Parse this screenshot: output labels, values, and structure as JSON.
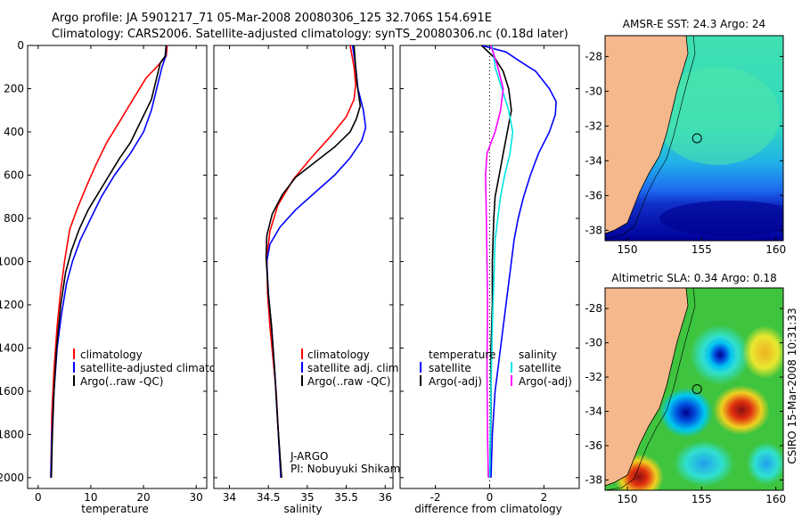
{
  "header": {
    "line1": "Argo profile: JA 5901217_71 05-Mar-2008 20080306_125 32.706S 154.691E",
    "line2": "Climatology: CARS2006. Satellite-adjusted climatology: synTS_20080306.nc (0.18d later)"
  },
  "colors": {
    "climatology": "#ff0000",
    "satellite": "#0000ff",
    "argo": "#000000",
    "salinity_satellite": "#00e5e5",
    "salinity_argo": "#ff00ff",
    "land": "#f5b88c"
  },
  "chart_data": [
    {
      "type": "line",
      "name": "temperature-profile",
      "xlabel": "temperature",
      "xlim": [
        -2,
        32
      ],
      "ylim": [
        2050,
        0
      ],
      "xticks": [
        0,
        10,
        20,
        30
      ],
      "yticks": [
        0,
        200,
        400,
        600,
        800,
        1000,
        1200,
        1400,
        1600,
        1800,
        2000
      ],
      "legend": [
        "climatology",
        "satellite-adjusted climatology",
        "Argo(..raw -QC)"
      ],
      "series": [
        {
          "name": "climatology",
          "color": "#ff0000",
          "x": [
            24.5,
            24.3,
            22.5,
            20.5,
            18,
            15.5,
            13,
            11,
            9.2,
            7.5,
            6,
            5,
            4.2,
            3.6,
            3,
            2.6,
            2.4
          ],
          "y": [
            0,
            50,
            100,
            150,
            250,
            350,
            450,
            550,
            650,
            750,
            850,
            1000,
            1150,
            1300,
            1500,
            1700,
            2000
          ]
        },
        {
          "name": "satellite-adjusted climatology",
          "color": "#0000ff",
          "x": [
            24.3,
            24.2,
            23.5,
            22.5,
            21.5,
            20,
            17.5,
            14.5,
            12,
            10,
            8,
            6.5,
            5.4,
            4.4,
            3.6,
            3,
            2.6,
            2.4
          ],
          "y": [
            0,
            50,
            100,
            200,
            300,
            400,
            500,
            600,
            700,
            800,
            900,
            1000,
            1100,
            1250,
            1400,
            1600,
            1800,
            2000
          ]
        },
        {
          "name": "Argo(..raw -QC)",
          "color": "#000000",
          "x": [
            24.3,
            24.1,
            23.2,
            22.5,
            21.5,
            19.5,
            17.5,
            15.5,
            13.5,
            11.5,
            9.5,
            7.8,
            6.3,
            5.2,
            4.3,
            3.5,
            3,
            2.7,
            2.5
          ],
          "y": [
            0,
            50,
            80,
            150,
            250,
            350,
            450,
            520,
            600,
            680,
            760,
            850,
            950,
            1050,
            1200,
            1400,
            1600,
            1800,
            2000
          ]
        }
      ]
    },
    {
      "type": "line",
      "name": "salinity-profile",
      "xlabel": "salinity",
      "xlim": [
        33.8,
        36.1
      ],
      "ylim": [
        2050,
        0
      ],
      "xticks": [
        34,
        34.5,
        35,
        35.5,
        36
      ],
      "legend": [
        "climatology",
        "satellite adj. clim.",
        "Argo(..raw -QC)"
      ],
      "annotation": [
        "J-ARGO",
        "PI: Nobuyuki Shikama"
      ],
      "series": [
        {
          "name": "climatology",
          "color": "#ff0000",
          "x": [
            35.55,
            35.6,
            35.62,
            35.6,
            35.5,
            35.3,
            35.05,
            34.82,
            34.62,
            34.52,
            34.48,
            34.49,
            34.52,
            34.56,
            34.6,
            34.63,
            34.66
          ],
          "y": [
            0,
            100,
            180,
            250,
            330,
            420,
            520,
            620,
            740,
            860,
            980,
            1150,
            1300,
            1450,
            1600,
            1800,
            2000
          ]
        },
        {
          "name": "satellite adj. clim.",
          "color": "#0000ff",
          "x": [
            35.58,
            35.62,
            35.65,
            35.72,
            35.75,
            35.7,
            35.55,
            35.35,
            35.1,
            34.85,
            34.65,
            34.52,
            34.48,
            34.5,
            34.54,
            34.58,
            34.62,
            34.66
          ],
          "y": [
            0,
            100,
            200,
            300,
            380,
            440,
            520,
            600,
            680,
            760,
            840,
            920,
            1000,
            1150,
            1300,
            1500,
            1750,
            2000
          ]
        },
        {
          "name": "Argo(..raw -QC)",
          "color": "#000000",
          "x": [
            35.6,
            35.62,
            35.64,
            35.68,
            35.63,
            35.55,
            35.35,
            35.1,
            34.85,
            34.68,
            34.55,
            34.48,
            34.47,
            34.5,
            34.54,
            34.58,
            34.62,
            34.67
          ],
          "y": [
            0,
            100,
            180,
            280,
            340,
            400,
            470,
            540,
            610,
            690,
            780,
            880,
            980,
            1150,
            1300,
            1500,
            1750,
            2000
          ]
        }
      ]
    },
    {
      "type": "line",
      "name": "difference-profile",
      "xlabel": "difference from climatology",
      "xlim": [
        -3.3,
        3.3
      ],
      "ylim": [
        2050,
        0
      ],
      "xticks": [
        -2,
        0,
        2
      ],
      "legend_temperature": {
        "title": "temperature",
        "items": [
          "satellite",
          "Argo(-adj)"
        ]
      },
      "legend_salinity": {
        "title": "salinity",
        "items": [
          "satellite",
          "Argo(-adj)"
        ]
      },
      "series": [
        {
          "name": "temperature satellite",
          "color": "#0000ff",
          "x": [
            -0.3,
            0.6,
            1.2,
            1.7,
            2.2,
            2.45,
            2.42,
            2.2,
            1.8,
            1.5,
            1.25,
            1.05,
            0.9,
            0.8,
            0.6,
            0.4,
            0.2,
            0.1,
            0.05
          ],
          "y": [
            0,
            30,
            80,
            120,
            200,
            260,
            320,
            400,
            500,
            600,
            700,
            800,
            900,
            1000,
            1200,
            1400,
            1600,
            1800,
            2000
          ]
        },
        {
          "name": "temperature Argo(-adj)",
          "color": "#000000",
          "x": [
            -0.3,
            0.2,
            0.5,
            0.7,
            0.8,
            0.65,
            0.5,
            0.35,
            0.2,
            0.15,
            0.1,
            0.1,
            0.05,
            0.05,
            0.0
          ],
          "y": [
            0,
            60,
            120,
            200,
            300,
            400,
            500,
            600,
            700,
            800,
            1000,
            1200,
            1400,
            1700,
            2000
          ]
        },
        {
          "name": "salinity satellite",
          "color": "#00e5e5",
          "x": [
            0.1,
            0.2,
            0.45,
            0.7,
            0.85,
            0.75,
            0.55,
            0.4,
            0.3,
            0.2,
            0.15,
            0.1,
            0.05,
            0.0
          ],
          "y": [
            0,
            100,
            200,
            300,
            400,
            500,
            600,
            700,
            800,
            900,
            1100,
            1300,
            1600,
            2000
          ]
        },
        {
          "name": "salinity Argo(-adj)",
          "color": "#ff00ff",
          "x": [
            0.05,
            0.3,
            0.5,
            0.4,
            0.2,
            -0.1,
            -0.15,
            -0.12,
            -0.1,
            -0.08,
            -0.1,
            -0.08,
            -0.05
          ],
          "y": [
            0,
            100,
            200,
            300,
            400,
            500,
            600,
            800,
            1000,
            1200,
            1500,
            1800,
            2000
          ]
        }
      ]
    },
    {
      "type": "heatmap",
      "name": "sst-map",
      "title": "AMSR-E SST: 24.3 Argo: 24",
      "xlim": [
        148.5,
        160.5
      ],
      "ylim": [
        -38.6,
        -26.8
      ],
      "xticks": [
        150,
        155,
        160
      ],
      "yticks": [
        -28,
        -30,
        -32,
        -34,
        -36,
        -38
      ],
      "argo_position": [
        154.691,
        -32.706
      ]
    },
    {
      "type": "heatmap",
      "name": "sla-map",
      "title": "Altimetric SLA: 0.34 Argo: 0.18",
      "xlim": [
        148.5,
        160.5
      ],
      "ylim": [
        -38.6,
        -26.8
      ],
      "xticks": [
        150,
        155,
        160
      ],
      "yticks": [
        -28,
        -30,
        -32,
        -34,
        -36,
        -38
      ],
      "argo_position": [
        154.691,
        -32.706
      ]
    }
  ],
  "footer_stamp": "CSIRO 15-Mar-2008 10:31:33"
}
